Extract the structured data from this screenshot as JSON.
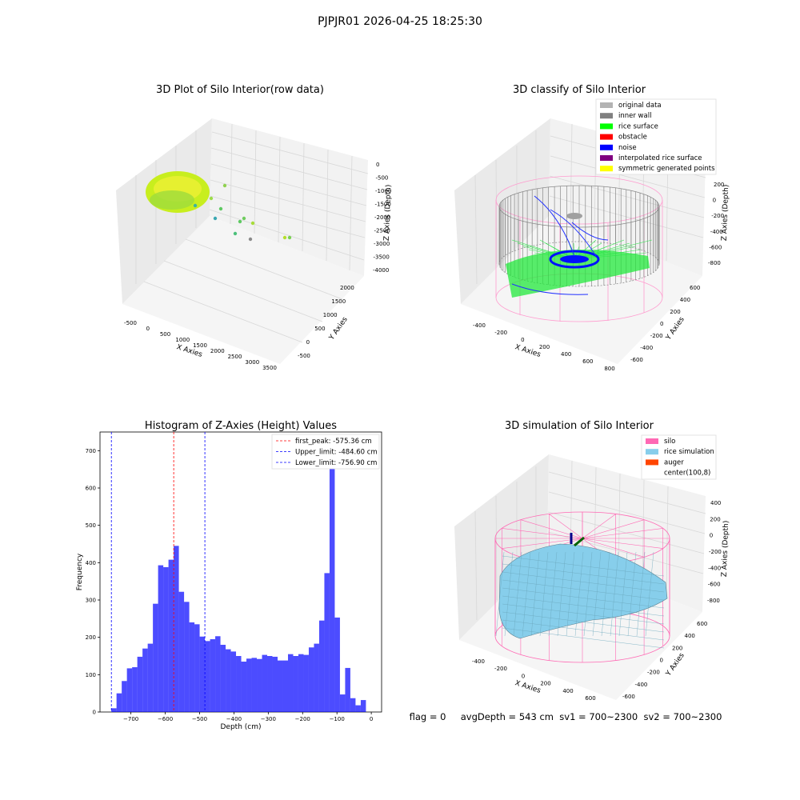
{
  "suptitle": "PJPJR01 2026-04-25 18:25:30",
  "panels": {
    "raw": {
      "title": "3D Plot of Silo Interior(row data)",
      "xlabel": "X Axies",
      "ylabel": "Y Axies",
      "zlabel": "Z Axies (Depth)",
      "xticks": [
        "-500",
        "0",
        "500",
        "1000",
        "1500",
        "2000",
        "2500",
        "3000",
        "3500"
      ],
      "yticks": [
        "-500",
        "0",
        "500",
        "1000",
        "1500",
        "2000"
      ],
      "zticks": [
        "0",
        "-500",
        "-1000",
        "-1500",
        "-2000",
        "-2500",
        "-3000",
        "-3500",
        "-4000"
      ]
    },
    "classify": {
      "title": "3D classify of Silo Interior",
      "xlabel": "X Axies",
      "ylabel": "Y Axies",
      "zlabel": "Z Axies (Depth)",
      "xticks": [
        "-400",
        "-200",
        "0",
        "200",
        "400",
        "600",
        "800"
      ],
      "yticks": [
        "-600",
        "-400",
        "-200",
        "0",
        "200",
        "400",
        "600"
      ],
      "zticks": [
        "200",
        "0",
        "-200",
        "-400",
        "-600",
        "-800"
      ],
      "legend": [
        {
          "label": "original data",
          "color": "#b3b3b3"
        },
        {
          "label": "inner wall",
          "color": "#808080"
        },
        {
          "label": "rice surface",
          "color": "#00ff00"
        },
        {
          "label": "obstacle",
          "color": "#ff0000"
        },
        {
          "label": "noise",
          "color": "#0000ff"
        },
        {
          "label": "interpolated rice surface",
          "color": "#800080"
        },
        {
          "label": "symmetric generated points",
          "color": "#ffff00"
        }
      ]
    },
    "simulation": {
      "title": "3D simulation of Silo Interior",
      "xlabel": "X Axies",
      "ylabel": "Y Axies",
      "zlabel": "Z Axies (Depth)",
      "xticks": [
        "-400",
        "-200",
        "0",
        "200",
        "400",
        "600"
      ],
      "yticks": [
        "-600",
        "-400",
        "-200",
        "0",
        "200",
        "400",
        "600"
      ],
      "zticks": [
        "400",
        "200",
        "0",
        "-200",
        "-400",
        "-600",
        "-800"
      ],
      "legend": [
        {
          "label": "silo",
          "color": "#ff69b4"
        },
        {
          "label": "rice simulation",
          "color": "#87ceeb"
        },
        {
          "label": "auger",
          "color": "#ff4500"
        },
        {
          "label": "center(100,8)",
          "color": "#ffffff"
        }
      ],
      "status": "flag = 0     avgDepth = 543 cm  sv1 = 700~2300  sv2 = 700~2300"
    }
  },
  "chart_data": [
    {
      "type": "bar",
      "title": "Histogram of Z-Axies (Height) Values",
      "xlabel": "Depth (cm)",
      "ylabel": "Frequency",
      "xlim": [
        -790,
        30
      ],
      "ylim": [
        0,
        750
      ],
      "xticks": [
        -700,
        -600,
        -500,
        -400,
        -300,
        -200,
        -100,
        0
      ],
      "yticks": [
        0,
        100,
        200,
        300,
        400,
        500,
        600,
        700
      ],
      "bin_start": -757,
      "bin_width": 15.13,
      "values": [
        10,
        50,
        83,
        117,
        120,
        148,
        170,
        183,
        290,
        393,
        388,
        408,
        445,
        322,
        295,
        240,
        235,
        202,
        190,
        195,
        203,
        180,
        168,
        162,
        150,
        135,
        143,
        145,
        142,
        153,
        150,
        148,
        138,
        138,
        155,
        150,
        155,
        153,
        173,
        183,
        245,
        372,
        715,
        253,
        47,
        118,
        37,
        18,
        32
      ],
      "bar_color": "#0000ff",
      "lines": [
        {
          "label": "first_peak: -575.36 cm",
          "x": -575.36,
          "color": "#ff0000"
        },
        {
          "label": "Upper_limit: -484.60 cm",
          "x": -484.6,
          "color": "#0000ff"
        },
        {
          "label": "Lower_limit: -756.90 cm",
          "x": -756.9,
          "color": "#0000ff"
        }
      ]
    }
  ]
}
